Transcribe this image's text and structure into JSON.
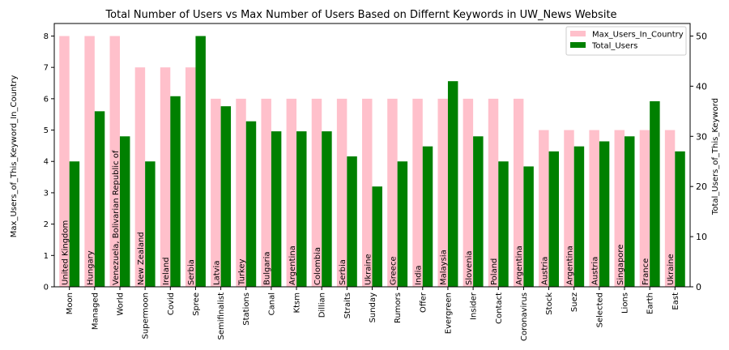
{
  "chart_data": {
    "type": "bar",
    "title": "Total Number of Users vs Max Number of Users Based on Differnt Keywords in UW_News Website",
    "ylabel_left": "Max_Users_of_This_Keyword_In_Country",
    "ylabel_right": "Total_Users_of_This_Keyword",
    "ylim_left": [
      0,
      8.4
    ],
    "ylim_right": [
      0,
      52.5
    ],
    "yticks_left": [
      0,
      1,
      2,
      3,
      4,
      5,
      6,
      7,
      8
    ],
    "yticks_right": [
      0,
      10,
      20,
      30,
      40,
      50
    ],
    "legend_position": "top-right",
    "categories": [
      "Moon",
      "Managed",
      "World",
      "Supermoon",
      "Covid",
      "Spree",
      "Semifinalist",
      "Stations",
      "Canal",
      "Ktsm",
      "Dillian",
      "Straits",
      "Sunday",
      "Rumors",
      "Offer",
      "Evergreen",
      "Insider",
      "Contact",
      "Coronavirus",
      "Stock",
      "Suez",
      "Selected",
      "Lions",
      "Earth",
      "East"
    ],
    "countries": [
      "United Kingdom",
      "Hungary",
      "Venezuela, Bolivarian Republic of",
      "New Zealand",
      "Ireland",
      "Serbia",
      "Latvia",
      "Turkey",
      "Bulgaria",
      "Argentina",
      "Colombia",
      "Serbia",
      "Ukraine",
      "Greece",
      "India",
      "Malaysia",
      "Slovenia",
      "Poland",
      "Argentina",
      "Austria",
      "Argentina",
      "Austria",
      "Singapore",
      "France",
      "Ukraine"
    ],
    "series": [
      {
        "name": "Max_Users_In_Country",
        "axis": "left",
        "color": "#ffc0cb",
        "values": [
          8,
          8,
          8,
          7,
          7,
          7,
          6,
          6,
          6,
          6,
          6,
          6,
          6,
          6,
          6,
          6,
          6,
          6,
          6,
          5,
          5,
          5,
          5,
          5,
          5
        ]
      },
      {
        "name": "Total_Users",
        "axis": "right",
        "color": "#008000",
        "values": [
          25,
          35,
          30,
          25,
          38,
          50,
          36,
          33,
          31,
          31,
          31,
          26,
          20,
          25,
          28,
          41,
          30,
          25,
          24,
          27,
          28,
          29,
          30,
          37,
          27
        ]
      }
    ]
  }
}
